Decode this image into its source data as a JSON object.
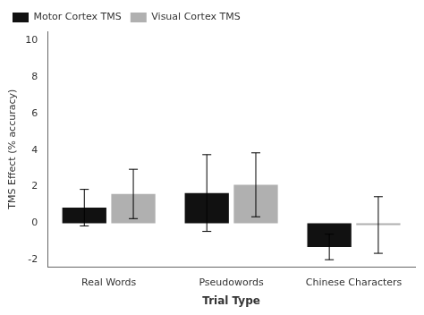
{
  "chart_data": {
    "type": "bar",
    "xlabel": "Trial Type",
    "ylabel": "TMS Effect (% accuracy)",
    "categories": [
      "Real Words",
      "Pseudowords",
      "Chinese Characters"
    ],
    "series": [
      {
        "name": "Motor Cortex TMS",
        "color": "#111111",
        "values": [
          0.85,
          1.65,
          -1.3
        ],
        "errors": [
          1.0,
          2.1,
          0.7
        ]
      },
      {
        "name": "Visual Cortex TMS",
        "color": "#b0b0b0",
        "values": [
          1.6,
          2.1,
          -0.1
        ],
        "errors": [
          1.35,
          1.75,
          1.55
        ]
      }
    ],
    "ylim": [
      -2.4,
      10.5
    ],
    "yticks": [
      -2,
      0,
      2,
      4,
      6,
      8,
      10
    ],
    "grid": false,
    "legend": "upper left"
  }
}
